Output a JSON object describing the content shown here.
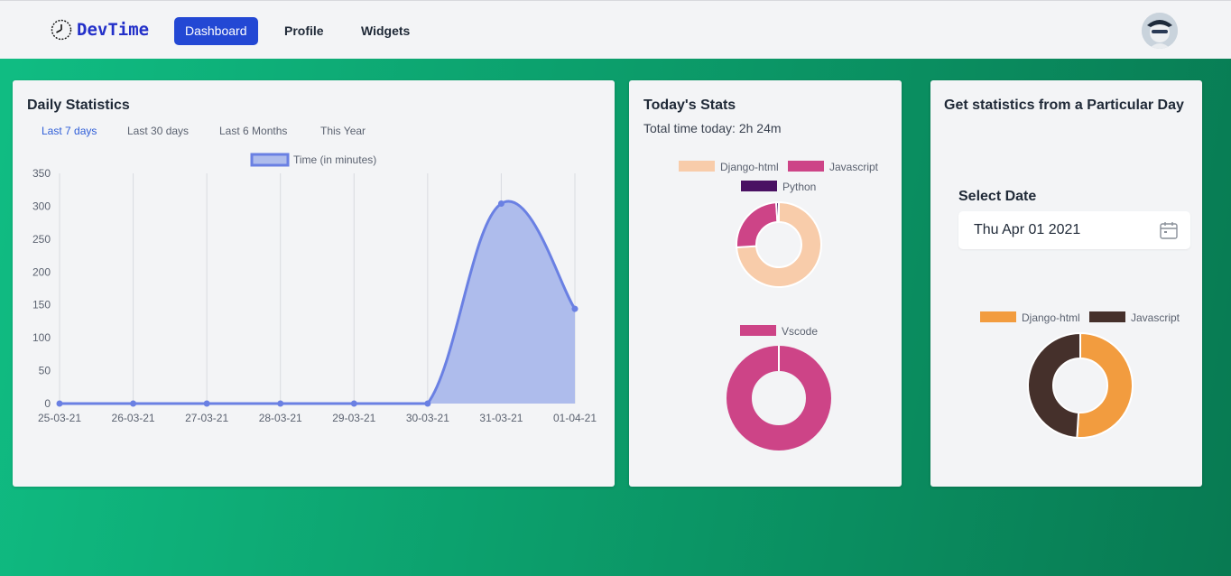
{
  "navbar": {
    "brand": "DevTime",
    "links": [
      {
        "label": "Dashboard",
        "active": true
      },
      {
        "label": "Profile",
        "active": false
      },
      {
        "label": "Widgets",
        "active": false
      }
    ],
    "avatar_icon": "user-avatar"
  },
  "daily": {
    "title": "Daily Statistics",
    "tabs": [
      "Last 7 days",
      "Last 30 days",
      "Last 6 Months",
      "This Year"
    ],
    "active_tab": "Last 7 days"
  },
  "today": {
    "title": "Today's Stats",
    "total": "Total time today: 2h 24m"
  },
  "particular": {
    "title": "Get statistics from a Particular Day",
    "select_label": "Select Date",
    "date_value": "Thu Apr 01 2021",
    "calendar_icon": "calendar-icon"
  },
  "chart_data": [
    {
      "type": "area",
      "series": [
        {
          "name": "Time (in minutes)",
          "values": [
            0,
            0,
            0,
            0,
            0,
            0,
            304,
            144
          ],
          "color": "#6a80e3",
          "fill": "#aebcec"
        }
      ],
      "categories": [
        "25-03-21",
        "26-03-21",
        "27-03-21",
        "28-03-21",
        "29-03-21",
        "30-03-21",
        "31-03-21",
        "01-04-21"
      ],
      "ylim": [
        0,
        350
      ],
      "yticks": [
        "0",
        "50",
        "100",
        "150",
        "200",
        "250",
        "300",
        "350"
      ],
      "grid": true,
      "legend": "top"
    },
    {
      "type": "pie",
      "labels": [
        "Django-html",
        "Javascript",
        "Python"
      ],
      "values": [
        74,
        25,
        1
      ],
      "colors": [
        "#f8ccaa",
        "#cd4487",
        "#4a1163"
      ],
      "legend": "top"
    },
    {
      "type": "pie",
      "labels": [
        "Vscode"
      ],
      "values": [
        100
      ],
      "colors": [
        "#cd4487"
      ],
      "legend": "top"
    },
    {
      "type": "pie",
      "labels": [
        "Django-html",
        "Javascript"
      ],
      "values": [
        51,
        49
      ],
      "colors": [
        "#f29c3f",
        "#45302b"
      ],
      "legend": "top"
    }
  ]
}
